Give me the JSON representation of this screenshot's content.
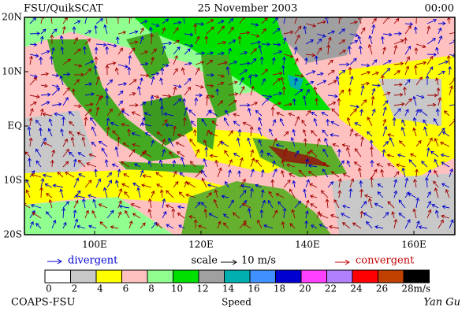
{
  "header": {
    "title": "FSU/QuikSCAT",
    "date": "25 November 2003",
    "time": "00:00"
  },
  "map": {
    "lat_labels": [
      "20N",
      "10N",
      "EQ",
      "10S",
      "20S"
    ],
    "lon_labels": [
      "100E",
      "120E",
      "140E",
      "160E"
    ]
  },
  "legend": {
    "divergent": "divergent",
    "scale": "scale",
    "scale_value": "10 m/s",
    "convergent": "convergent"
  },
  "colorbar": {
    "colors": [
      "#ffffff",
      "#c8c8c8",
      "#ffff00",
      "#ffc0c0",
      "#90ff90",
      "#00e000",
      "#a0a0a0",
      "#00b0b0",
      "#4090ff",
      "#0000d0",
      "#ff40ff",
      "#b080ff",
      "#ff0000",
      "#c04000",
      "#000000"
    ],
    "labels": [
      0,
      2,
      4,
      6,
      8,
      10,
      12,
      14,
      16,
      18,
      20,
      22,
      24,
      26,
      28
    ],
    "unit": "m/s",
    "title": "Speed"
  },
  "footer": {
    "source": "COAPS-FSU",
    "author": "Yan Gu"
  }
}
